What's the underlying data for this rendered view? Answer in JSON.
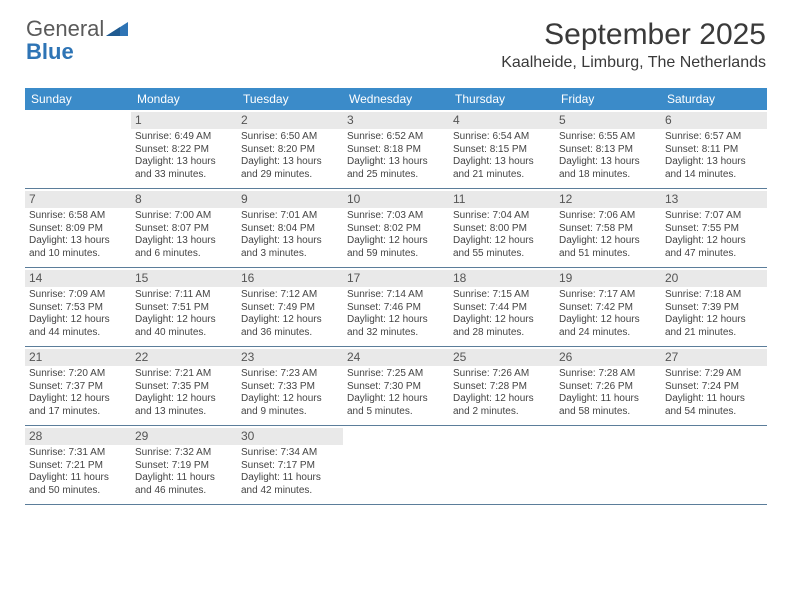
{
  "brand": {
    "part1": "General",
    "part2": "Blue"
  },
  "title": "September 2025",
  "location": "Kaalheide, Limburg, The Netherlands",
  "calendar": {
    "header_bg": "#3b8bc9",
    "header_fg": "#ffffff",
    "daynum_bg": "#e9e9e9",
    "row_border": "#5b7d9a",
    "day_names": [
      "Sunday",
      "Monday",
      "Tuesday",
      "Wednesday",
      "Thursday",
      "Friday",
      "Saturday"
    ],
    "weeks": [
      [
        {
          "n": "",
          "sr": "",
          "ss": "",
          "dl1": "",
          "dl2": ""
        },
        {
          "n": "1",
          "sr": "Sunrise: 6:49 AM",
          "ss": "Sunset: 8:22 PM",
          "dl1": "Daylight: 13 hours",
          "dl2": "and 33 minutes."
        },
        {
          "n": "2",
          "sr": "Sunrise: 6:50 AM",
          "ss": "Sunset: 8:20 PM",
          "dl1": "Daylight: 13 hours",
          "dl2": "and 29 minutes."
        },
        {
          "n": "3",
          "sr": "Sunrise: 6:52 AM",
          "ss": "Sunset: 8:18 PM",
          "dl1": "Daylight: 13 hours",
          "dl2": "and 25 minutes."
        },
        {
          "n": "4",
          "sr": "Sunrise: 6:54 AM",
          "ss": "Sunset: 8:15 PM",
          "dl1": "Daylight: 13 hours",
          "dl2": "and 21 minutes."
        },
        {
          "n": "5",
          "sr": "Sunrise: 6:55 AM",
          "ss": "Sunset: 8:13 PM",
          "dl1": "Daylight: 13 hours",
          "dl2": "and 18 minutes."
        },
        {
          "n": "6",
          "sr": "Sunrise: 6:57 AM",
          "ss": "Sunset: 8:11 PM",
          "dl1": "Daylight: 13 hours",
          "dl2": "and 14 minutes."
        }
      ],
      [
        {
          "n": "7",
          "sr": "Sunrise: 6:58 AM",
          "ss": "Sunset: 8:09 PM",
          "dl1": "Daylight: 13 hours",
          "dl2": "and 10 minutes."
        },
        {
          "n": "8",
          "sr": "Sunrise: 7:00 AM",
          "ss": "Sunset: 8:07 PM",
          "dl1": "Daylight: 13 hours",
          "dl2": "and 6 minutes."
        },
        {
          "n": "9",
          "sr": "Sunrise: 7:01 AM",
          "ss": "Sunset: 8:04 PM",
          "dl1": "Daylight: 13 hours",
          "dl2": "and 3 minutes."
        },
        {
          "n": "10",
          "sr": "Sunrise: 7:03 AM",
          "ss": "Sunset: 8:02 PM",
          "dl1": "Daylight: 12 hours",
          "dl2": "and 59 minutes."
        },
        {
          "n": "11",
          "sr": "Sunrise: 7:04 AM",
          "ss": "Sunset: 8:00 PM",
          "dl1": "Daylight: 12 hours",
          "dl2": "and 55 minutes."
        },
        {
          "n": "12",
          "sr": "Sunrise: 7:06 AM",
          "ss": "Sunset: 7:58 PM",
          "dl1": "Daylight: 12 hours",
          "dl2": "and 51 minutes."
        },
        {
          "n": "13",
          "sr": "Sunrise: 7:07 AM",
          "ss": "Sunset: 7:55 PM",
          "dl1": "Daylight: 12 hours",
          "dl2": "and 47 minutes."
        }
      ],
      [
        {
          "n": "14",
          "sr": "Sunrise: 7:09 AM",
          "ss": "Sunset: 7:53 PM",
          "dl1": "Daylight: 12 hours",
          "dl2": "and 44 minutes."
        },
        {
          "n": "15",
          "sr": "Sunrise: 7:11 AM",
          "ss": "Sunset: 7:51 PM",
          "dl1": "Daylight: 12 hours",
          "dl2": "and 40 minutes."
        },
        {
          "n": "16",
          "sr": "Sunrise: 7:12 AM",
          "ss": "Sunset: 7:49 PM",
          "dl1": "Daylight: 12 hours",
          "dl2": "and 36 minutes."
        },
        {
          "n": "17",
          "sr": "Sunrise: 7:14 AM",
          "ss": "Sunset: 7:46 PM",
          "dl1": "Daylight: 12 hours",
          "dl2": "and 32 minutes."
        },
        {
          "n": "18",
          "sr": "Sunrise: 7:15 AM",
          "ss": "Sunset: 7:44 PM",
          "dl1": "Daylight: 12 hours",
          "dl2": "and 28 minutes."
        },
        {
          "n": "19",
          "sr": "Sunrise: 7:17 AM",
          "ss": "Sunset: 7:42 PM",
          "dl1": "Daylight: 12 hours",
          "dl2": "and 24 minutes."
        },
        {
          "n": "20",
          "sr": "Sunrise: 7:18 AM",
          "ss": "Sunset: 7:39 PM",
          "dl1": "Daylight: 12 hours",
          "dl2": "and 21 minutes."
        }
      ],
      [
        {
          "n": "21",
          "sr": "Sunrise: 7:20 AM",
          "ss": "Sunset: 7:37 PM",
          "dl1": "Daylight: 12 hours",
          "dl2": "and 17 minutes."
        },
        {
          "n": "22",
          "sr": "Sunrise: 7:21 AM",
          "ss": "Sunset: 7:35 PM",
          "dl1": "Daylight: 12 hours",
          "dl2": "and 13 minutes."
        },
        {
          "n": "23",
          "sr": "Sunrise: 7:23 AM",
          "ss": "Sunset: 7:33 PM",
          "dl1": "Daylight: 12 hours",
          "dl2": "and 9 minutes."
        },
        {
          "n": "24",
          "sr": "Sunrise: 7:25 AM",
          "ss": "Sunset: 7:30 PM",
          "dl1": "Daylight: 12 hours",
          "dl2": "and 5 minutes."
        },
        {
          "n": "25",
          "sr": "Sunrise: 7:26 AM",
          "ss": "Sunset: 7:28 PM",
          "dl1": "Daylight: 12 hours",
          "dl2": "and 2 minutes."
        },
        {
          "n": "26",
          "sr": "Sunrise: 7:28 AM",
          "ss": "Sunset: 7:26 PM",
          "dl1": "Daylight: 11 hours",
          "dl2": "and 58 minutes."
        },
        {
          "n": "27",
          "sr": "Sunrise: 7:29 AM",
          "ss": "Sunset: 7:24 PM",
          "dl1": "Daylight: 11 hours",
          "dl2": "and 54 minutes."
        }
      ],
      [
        {
          "n": "28",
          "sr": "Sunrise: 7:31 AM",
          "ss": "Sunset: 7:21 PM",
          "dl1": "Daylight: 11 hours",
          "dl2": "and 50 minutes."
        },
        {
          "n": "29",
          "sr": "Sunrise: 7:32 AM",
          "ss": "Sunset: 7:19 PM",
          "dl1": "Daylight: 11 hours",
          "dl2": "and 46 minutes."
        },
        {
          "n": "30",
          "sr": "Sunrise: 7:34 AM",
          "ss": "Sunset: 7:17 PM",
          "dl1": "Daylight: 11 hours",
          "dl2": "and 42 minutes."
        },
        {
          "n": "",
          "sr": "",
          "ss": "",
          "dl1": "",
          "dl2": ""
        },
        {
          "n": "",
          "sr": "",
          "ss": "",
          "dl1": "",
          "dl2": ""
        },
        {
          "n": "",
          "sr": "",
          "ss": "",
          "dl1": "",
          "dl2": ""
        },
        {
          "n": "",
          "sr": "",
          "ss": "",
          "dl1": "",
          "dl2": ""
        }
      ]
    ]
  }
}
